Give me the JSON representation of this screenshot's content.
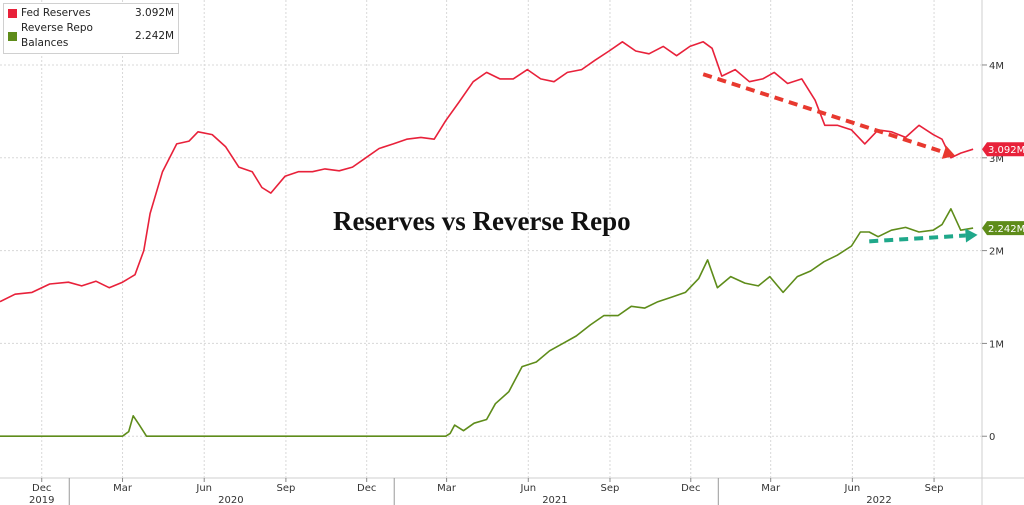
{
  "chart_data": {
    "type": "line",
    "title": "Reserves vs Reverse Repo",
    "legend_placement": "top-left",
    "grid": true,
    "y_ticks": [
      {
        "value": 0,
        "label": "0"
      },
      {
        "value": 1,
        "label": "1M"
      },
      {
        "value": 2,
        "label": "2M"
      },
      {
        "value": 3,
        "label": "3M"
      },
      {
        "value": 4,
        "label": "4M"
      }
    ],
    "ylim": [
      -0.45,
      4.7
    ],
    "xlim": [
      "2019-10-15",
      "2022-10-25"
    ],
    "x_ticks": [
      {
        "date": "2019-12-01",
        "label": "Dec"
      },
      {
        "date": "2020-03-01",
        "label": "Mar"
      },
      {
        "date": "2020-06-01",
        "label": "Jun"
      },
      {
        "date": "2020-09-01",
        "label": "Sep"
      },
      {
        "date": "2020-12-01",
        "label": "Dec"
      },
      {
        "date": "2021-03-01",
        "label": "Mar"
      },
      {
        "date": "2021-06-01",
        "label": "Jun"
      },
      {
        "date": "2021-09-01",
        "label": "Sep"
      },
      {
        "date": "2021-12-01",
        "label": "Dec"
      },
      {
        "date": "2022-03-01",
        "label": "Mar"
      },
      {
        "date": "2022-06-01",
        "label": "Jun"
      },
      {
        "date": "2022-09-01",
        "label": "Sep"
      }
    ],
    "year_labels": [
      {
        "date": "2019-12-01",
        "label": "2019"
      },
      {
        "date": "2020-07-01",
        "label": "2020"
      },
      {
        "date": "2021-07-01",
        "label": "2021"
      },
      {
        "date": "2022-07-01",
        "label": "2022"
      }
    ],
    "year_separators": [
      "2020-01-01",
      "2021-01-01",
      "2022-01-01"
    ],
    "series": [
      {
        "name": "Fed Reserves",
        "last_value_label": "3.092M",
        "color": "#e8213a",
        "points": [
          [
            "2019-10-15",
            1.45
          ],
          [
            "2019-11-01",
            1.53
          ],
          [
            "2019-11-20",
            1.55
          ],
          [
            "2019-12-10",
            1.64
          ],
          [
            "2019-12-31",
            1.66
          ],
          [
            "2020-01-15",
            1.62
          ],
          [
            "2020-01-31",
            1.67
          ],
          [
            "2020-02-15",
            1.6
          ],
          [
            "2020-03-01",
            1.66
          ],
          [
            "2020-03-15",
            1.74
          ],
          [
            "2020-03-25",
            2.0
          ],
          [
            "2020-04-01",
            2.4
          ],
          [
            "2020-04-15",
            2.85
          ],
          [
            "2020-05-01",
            3.15
          ],
          [
            "2020-05-15",
            3.18
          ],
          [
            "2020-05-25",
            3.28
          ],
          [
            "2020-06-10",
            3.25
          ],
          [
            "2020-06-25",
            3.12
          ],
          [
            "2020-07-10",
            2.9
          ],
          [
            "2020-07-25",
            2.85
          ],
          [
            "2020-08-05",
            2.68
          ],
          [
            "2020-08-15",
            2.62
          ],
          [
            "2020-08-31",
            2.8
          ],
          [
            "2020-09-15",
            2.85
          ],
          [
            "2020-10-01",
            2.85
          ],
          [
            "2020-10-15",
            2.88
          ],
          [
            "2020-10-31",
            2.86
          ],
          [
            "2020-11-15",
            2.9
          ],
          [
            "2020-11-30",
            3.0
          ],
          [
            "2020-12-15",
            3.1
          ],
          [
            "2020-12-31",
            3.15
          ],
          [
            "2021-01-15",
            3.2
          ],
          [
            "2021-01-31",
            3.22
          ],
          [
            "2021-02-15",
            3.2
          ],
          [
            "2021-02-28",
            3.4
          ],
          [
            "2021-03-15",
            3.6
          ],
          [
            "2021-03-31",
            3.82
          ],
          [
            "2021-04-15",
            3.92
          ],
          [
            "2021-04-30",
            3.85
          ],
          [
            "2021-05-15",
            3.85
          ],
          [
            "2021-05-31",
            3.95
          ],
          [
            "2021-06-15",
            3.85
          ],
          [
            "2021-06-30",
            3.82
          ],
          [
            "2021-07-15",
            3.92
          ],
          [
            "2021-07-31",
            3.95
          ],
          [
            "2021-08-15",
            4.05
          ],
          [
            "2021-08-31",
            4.15
          ],
          [
            "2021-09-15",
            4.25
          ],
          [
            "2021-09-30",
            4.15
          ],
          [
            "2021-10-15",
            4.12
          ],
          [
            "2021-10-31",
            4.2
          ],
          [
            "2021-11-15",
            4.1
          ],
          [
            "2021-11-30",
            4.2
          ],
          [
            "2021-12-15",
            4.25
          ],
          [
            "2021-12-25",
            4.18
          ],
          [
            "2022-01-05",
            3.88
          ],
          [
            "2022-01-20",
            3.95
          ],
          [
            "2022-02-05",
            3.82
          ],
          [
            "2022-02-20",
            3.85
          ],
          [
            "2022-03-05",
            3.92
          ],
          [
            "2022-03-20",
            3.8
          ],
          [
            "2022-04-05",
            3.85
          ],
          [
            "2022-04-20",
            3.62
          ],
          [
            "2022-05-01",
            3.35
          ],
          [
            "2022-05-15",
            3.35
          ],
          [
            "2022-05-31",
            3.3
          ],
          [
            "2022-06-15",
            3.15
          ],
          [
            "2022-06-30",
            3.3
          ],
          [
            "2022-07-15",
            3.28
          ],
          [
            "2022-07-31",
            3.22
          ],
          [
            "2022-08-15",
            3.35
          ],
          [
            "2022-08-31",
            3.25
          ],
          [
            "2022-09-10",
            3.2
          ],
          [
            "2022-09-20",
            3.0
          ],
          [
            "2022-10-01",
            3.05
          ],
          [
            "2022-10-15",
            3.092
          ]
        ]
      },
      {
        "name": "Reverse Repo Balances",
        "last_value_label": "2.242M",
        "color": "#5e8c1a",
        "points": [
          [
            "2019-10-15",
            0.0
          ],
          [
            "2020-03-01",
            0.0
          ],
          [
            "2020-03-08",
            0.05
          ],
          [
            "2020-03-13",
            0.22
          ],
          [
            "2020-03-20",
            0.12
          ],
          [
            "2020-03-28",
            0.0
          ],
          [
            "2021-02-28",
            0.0
          ],
          [
            "2021-03-05",
            0.03
          ],
          [
            "2021-03-10",
            0.12
          ],
          [
            "2021-03-20",
            0.06
          ],
          [
            "2021-04-01",
            0.14
          ],
          [
            "2021-04-15",
            0.18
          ],
          [
            "2021-04-25",
            0.35
          ],
          [
            "2021-05-10",
            0.48
          ],
          [
            "2021-05-25",
            0.75
          ],
          [
            "2021-06-10",
            0.8
          ],
          [
            "2021-06-25",
            0.92
          ],
          [
            "2021-07-10",
            1.0
          ],
          [
            "2021-07-25",
            1.08
          ],
          [
            "2021-08-10",
            1.2
          ],
          [
            "2021-08-25",
            1.3
          ],
          [
            "2021-09-10",
            1.3
          ],
          [
            "2021-09-25",
            1.4
          ],
          [
            "2021-10-10",
            1.38
          ],
          [
            "2021-10-25",
            1.45
          ],
          [
            "2021-11-10",
            1.5
          ],
          [
            "2021-11-25",
            1.55
          ],
          [
            "2021-12-10",
            1.7
          ],
          [
            "2021-12-20",
            1.9
          ],
          [
            "2021-12-31",
            1.6
          ],
          [
            "2022-01-15",
            1.72
          ],
          [
            "2022-01-31",
            1.65
          ],
          [
            "2022-02-15",
            1.62
          ],
          [
            "2022-02-28",
            1.72
          ],
          [
            "2022-03-15",
            1.55
          ],
          [
            "2022-03-31",
            1.72
          ],
          [
            "2022-04-15",
            1.78
          ],
          [
            "2022-04-30",
            1.88
          ],
          [
            "2022-05-15",
            1.95
          ],
          [
            "2022-05-31",
            2.05
          ],
          [
            "2022-06-10",
            2.2
          ],
          [
            "2022-06-20",
            2.2
          ],
          [
            "2022-06-30",
            2.15
          ],
          [
            "2022-07-15",
            2.22
          ],
          [
            "2022-07-31",
            2.25
          ],
          [
            "2022-08-15",
            2.2
          ],
          [
            "2022-08-31",
            2.22
          ],
          [
            "2022-09-10",
            2.28
          ],
          [
            "2022-09-20",
            2.45
          ],
          [
            "2022-10-01",
            2.22
          ],
          [
            "2022-10-15",
            2.242
          ]
        ]
      }
    ],
    "annotations": [
      {
        "type": "dashed-arrow",
        "color": "#e8392f",
        "from": [
          "2021-12-15",
          3.9
        ],
        "to": [
          "2022-09-25",
          3.02
        ]
      },
      {
        "type": "dashed-arrow",
        "color": "#1fa88a",
        "from": [
          "2022-06-20",
          2.1
        ],
        "to": [
          "2022-10-20",
          2.17
        ]
      }
    ]
  }
}
